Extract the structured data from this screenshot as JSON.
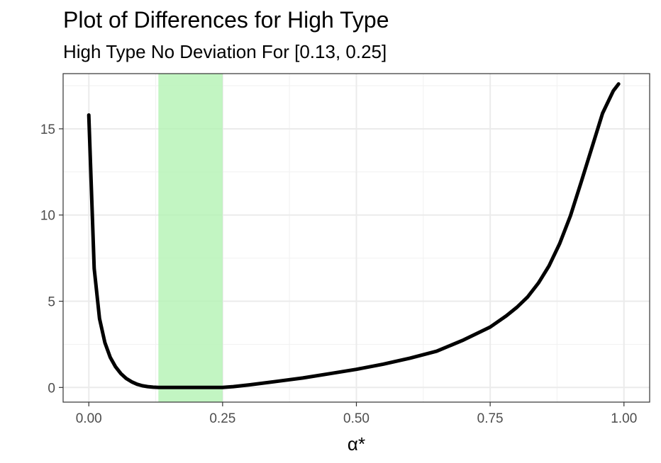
{
  "chart_data": {
    "type": "line",
    "title": "Plot of Differences for High Type",
    "subtitle": "High Type No Deviation For [0.13, 0.25]",
    "xlabel": "α*",
    "ylabel": "",
    "xlim": [
      -0.048,
      1.048
    ],
    "ylim": [
      -0.85,
      18.2
    ],
    "x_ticks": [
      0.0,
      0.25,
      0.5,
      0.75,
      1.0
    ],
    "x_tick_labels": [
      "0.00",
      "0.25",
      "0.50",
      "0.75",
      "1.00"
    ],
    "y_ticks": [
      0,
      5,
      10,
      15
    ],
    "y_tick_labels": [
      "0",
      "5",
      "10",
      "15"
    ],
    "grid": true,
    "legend": "none",
    "highlight_band": {
      "x_start": 0.13,
      "x_end": 0.25,
      "color": "#b3f2b3"
    },
    "line_color": "#000000",
    "series": [
      {
        "x": [
          0.0,
          0.01,
          0.02,
          0.03,
          0.04,
          0.05,
          0.06,
          0.07,
          0.08,
          0.09,
          0.1,
          0.11,
          0.12,
          0.13,
          0.15,
          0.18,
          0.2,
          0.22,
          0.25,
          0.27,
          0.3,
          0.35,
          0.4,
          0.45,
          0.5,
          0.55,
          0.6,
          0.65,
          0.7,
          0.75,
          0.78,
          0.8,
          0.82,
          0.84,
          0.86,
          0.88,
          0.9,
          0.92,
          0.94,
          0.96,
          0.98,
          0.99
        ],
        "values": [
          15.8,
          6.9,
          4.0,
          2.6,
          1.75,
          1.2,
          0.8,
          0.52,
          0.33,
          0.19,
          0.1,
          0.05,
          0.015,
          0.0,
          0.0,
          0.0,
          0.0,
          0.0,
          0.0,
          0.05,
          0.15,
          0.35,
          0.55,
          0.8,
          1.05,
          1.35,
          1.7,
          2.1,
          2.75,
          3.5,
          4.15,
          4.65,
          5.25,
          6.05,
          7.05,
          8.35,
          9.95,
          11.9,
          13.9,
          15.9,
          17.2,
          17.6
        ]
      }
    ]
  }
}
